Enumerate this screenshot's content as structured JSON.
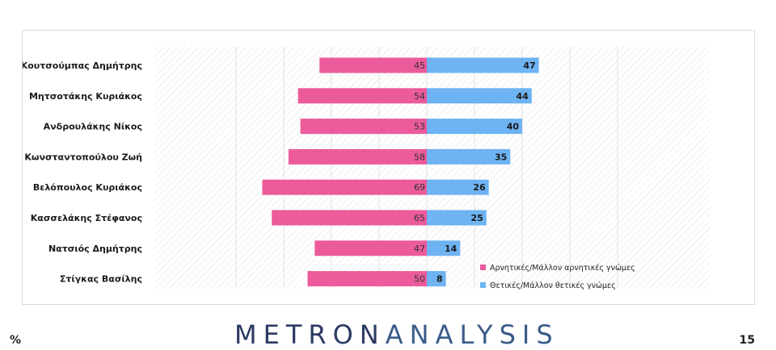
{
  "chart_data": {
    "type": "bar",
    "orientation": "horizontal-diverging",
    "categories": [
      "Κουτσούμπας Δημήτρης",
      "Μητσοτάκης Κυριάκος",
      "Ανδρουλάκης Νίκος",
      "Κωνσταντοπούλου Ζωή",
      "Βελόπουλος Κυριάκος",
      "Κασσελάκης Στέφανος",
      "Νατσιός Δημήτρης",
      "Στίγκας Βασίλης"
    ],
    "series": [
      {
        "name": "Αρνητικές/Μάλλον αρνητικές γνώμες",
        "values": [
          45,
          54,
          53,
          58,
          69,
          65,
          47,
          50
        ],
        "color": "#ec5b9c"
      },
      {
        "name": "Θετικές/Μάλλον θετικές γνώμες",
        "values": [
          47,
          44,
          40,
          35,
          26,
          25,
          14,
          8
        ],
        "color": "#6eb3f2"
      }
    ],
    "xlim": [
      -85,
      85
    ],
    "grid": true,
    "legend_position": "bottom-right"
  },
  "footer": {
    "unit": "%",
    "page_number": "15",
    "logo_part1": "METRON",
    "logo_part2": "ANALYSIS"
  }
}
